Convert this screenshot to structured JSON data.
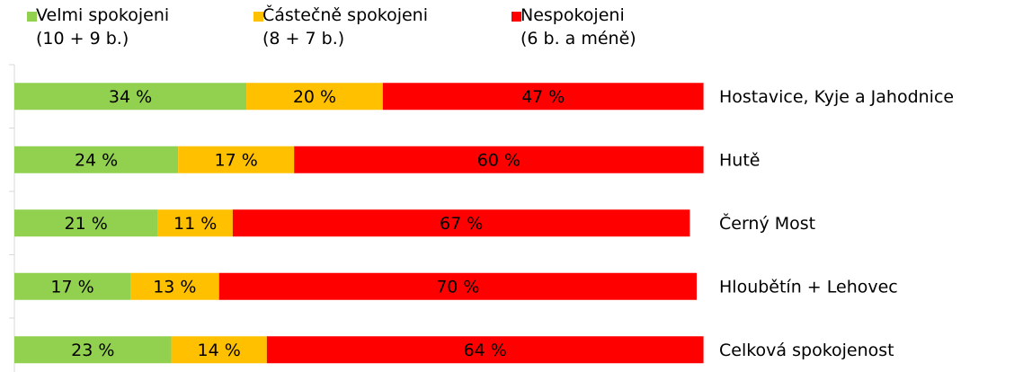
{
  "chart_data": {
    "type": "stacked-bar-horizontal",
    "categories": [
      "Hostavice, Kyje a Jahodnice",
      "Hutě",
      "Černý Most",
      "Hloubětín + Lehovec",
      "Celková spokojenost"
    ],
    "series": [
      {
        "name": "Velmi spokojeni\n(10 + 9 b.)",
        "color": "#92d050",
        "values": [
          34,
          24,
          21,
          17,
          23
        ],
        "value_labels": [
          "34 %",
          "24 %",
          "21 %",
          "17 %",
          "23 %"
        ]
      },
      {
        "name": "Částečně spokojeni\n(8 + 7 b.)",
        "color": "#ffc000",
        "values": [
          20,
          17,
          11,
          13,
          14
        ],
        "value_labels": [
          "20 %",
          "17 %",
          "11 %",
          "13 %",
          "14 %"
        ]
      },
      {
        "name": "Nespokojeni\n(6 b. a méně)",
        "color": "#ff0000",
        "values": [
          47,
          60,
          67,
          70,
          64
        ],
        "value_labels": [
          "47 %",
          "60 %",
          "67 %",
          "70 %",
          "64 %"
        ]
      }
    ],
    "xlim": [
      0,
      100
    ]
  }
}
